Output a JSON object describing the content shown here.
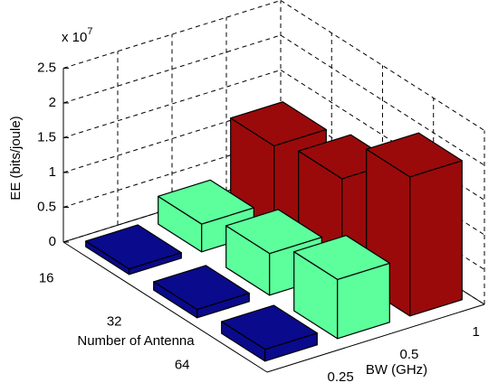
{
  "chart_data": {
    "type": "bar3d",
    "zlabel": "EE (bits/joule)",
    "zscale_base": "x 10",
    "zscale_exponent": "7",
    "xlabel": "Number of Antenna",
    "ylabel": "BW (GHz)",
    "x_categories": [
      "16",
      "32",
      "64"
    ],
    "y_categories": [
      "0.25",
      "0.5",
      "1"
    ],
    "series": [
      {
        "color": "#0a0a8c",
        "values": [
          0.08,
          0.12,
          0.17
        ]
      },
      {
        "color": "#5cff9c",
        "values": [
          0.4,
          0.6,
          0.85
        ]
      },
      {
        "color": "#9a0a0a",
        "values": [
          1.2,
          1.35,
          2.0
        ]
      }
    ],
    "zlim": [
      0,
      2.5
    ],
    "zticks": [
      0,
      0.5,
      1,
      1.5,
      2,
      2.5
    ],
    "grid": true
  }
}
